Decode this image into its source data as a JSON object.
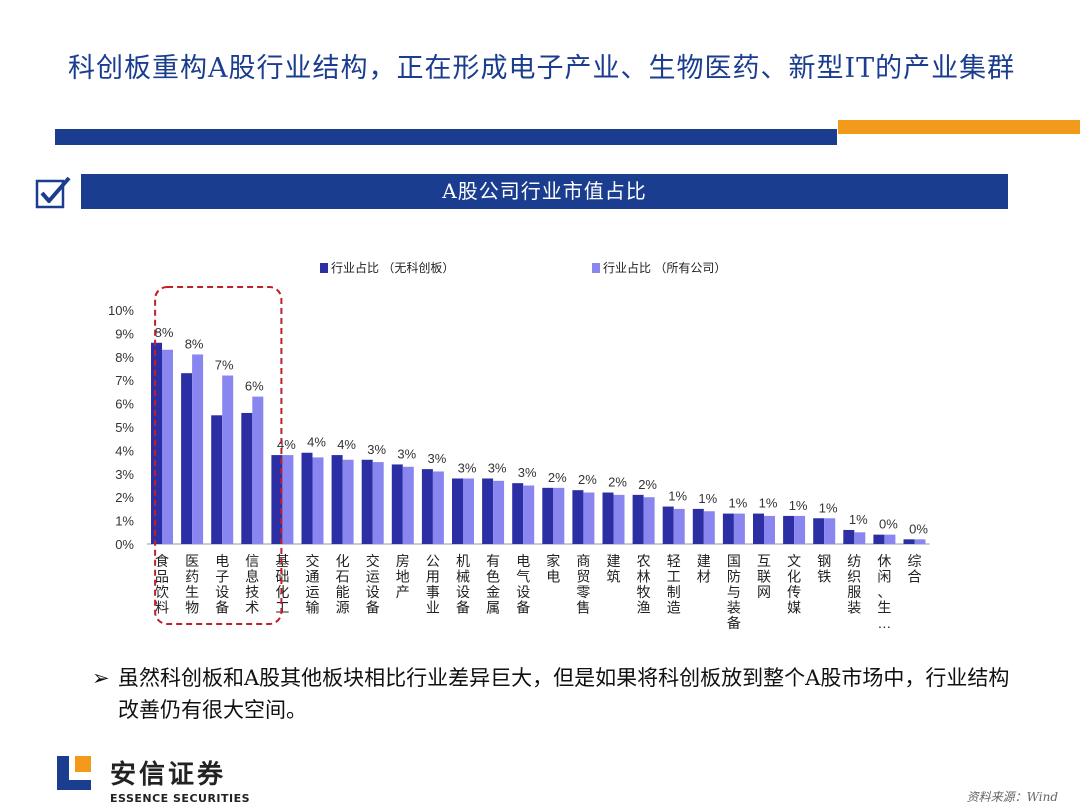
{
  "page": {
    "title": "科创板重构A股行业结构，正在形成电子产业、生物医药、新型IT的产业集群",
    "banner": "A股公司行业市值占比",
    "bullet": "虽然科创板和A股其他板块相比行业差异巨大，但是如果将科创板放到整个A股市场中，行业结构改善仍有很大空间。",
    "logo_cn": "安信证券",
    "logo_en": "ESSENCE SECURITIES",
    "source": "资料来源：Wind"
  },
  "colors": {
    "primary": "#1b3d8f",
    "accent": "#f39a1d",
    "series1": "#2b2fa3",
    "series2": "#8a86f0",
    "highlight_box": "#c0202a"
  },
  "icons": [
    "checkbox-check-icon",
    "arrow-bullet-icon",
    "essence-logo-icon"
  ],
  "chart_data": {
    "type": "bar",
    "title": "",
    "xlabel": "",
    "ylabel": "",
    "ylim": [
      0,
      10
    ],
    "y_ticks": [
      "0%",
      "1%",
      "2%",
      "3%",
      "4%",
      "5%",
      "6%",
      "7%",
      "8%",
      "9%",
      "10%"
    ],
    "legend_position": "top",
    "categories": [
      "食品饮料",
      "医药生物",
      "电子设备",
      "信息技术",
      "基础化工",
      "交通运输",
      "化石能源",
      "交运设备",
      "房地产",
      "公用事业",
      "机械设备",
      "有色金属",
      "电气设备",
      "家电",
      "商贸零售",
      "建筑",
      "农林牧渔",
      "轻工制造",
      "建材",
      "国防与装备",
      "互联网",
      "文化传媒",
      "钢铁",
      "纺织服装",
      "休闲、生…",
      "综合"
    ],
    "series": [
      {
        "name": "行业占比 （无科创板）",
        "values": [
          8.6,
          7.3,
          5.5,
          5.6,
          3.8,
          3.9,
          3.8,
          3.6,
          3.4,
          3.2,
          2.8,
          2.8,
          2.6,
          2.4,
          2.3,
          2.2,
          2.1,
          1.6,
          1.5,
          1.3,
          1.3,
          1.2,
          1.1,
          0.6,
          0.4,
          0.2
        ]
      },
      {
        "name": "行业占比 （所有公司）",
        "values": [
          8.3,
          8.1,
          7.2,
          6.3,
          3.8,
          3.7,
          3.6,
          3.5,
          3.3,
          3.1,
          2.8,
          2.7,
          2.5,
          2.4,
          2.2,
          2.1,
          2.0,
          1.5,
          1.4,
          1.3,
          1.2,
          1.2,
          1.1,
          0.5,
          0.4,
          0.2
        ]
      }
    ],
    "data_labels": [
      "8%",
      "8%",
      "7%",
      "6%",
      "4%",
      "4%",
      "4%",
      "3%",
      "3%",
      "3%",
      "3%",
      "3%",
      "3%",
      "2%",
      "2%",
      "2%",
      "2%",
      "1%",
      "1%",
      "1%",
      "1%",
      "1%",
      "1%",
      "1%",
      "0%",
      "0%"
    ],
    "highlight": {
      "from_category": 1,
      "to_category": 3
    }
  }
}
